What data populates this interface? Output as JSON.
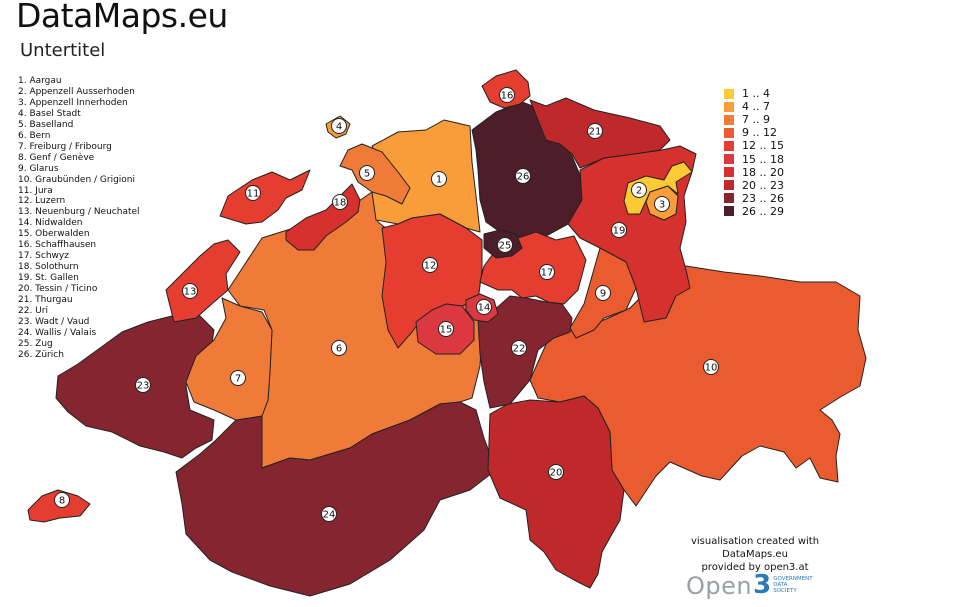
{
  "header": {
    "title": "DataMaps.eu",
    "subtitle": "Untertitel"
  },
  "cantons": [
    {
      "num": "1",
      "label": "1. Aargau",
      "class": 1
    },
    {
      "num": "2",
      "label": "2. Appenzell Ausserhoden",
      "class": 0
    },
    {
      "num": "3",
      "label": "3. Appenzell Innerhoden",
      "class": 1
    },
    {
      "num": "4",
      "label": "4. Basel Stadt",
      "class": 1
    },
    {
      "num": "5",
      "label": "5. Baselland",
      "class": 2
    },
    {
      "num": "6",
      "label": "6. Bern",
      "class": 2
    },
    {
      "num": "7",
      "label": "7. Freiburg / Fribourg",
      "class": 2
    },
    {
      "num": "8",
      "label": "8. Genf / Genève",
      "class": 4
    },
    {
      "num": "9",
      "label": "9. Glarus",
      "class": 3
    },
    {
      "num": "10",
      "label": "10. Graubünden / Grigioni",
      "class": 3
    },
    {
      "num": "11",
      "label": "11. Jura",
      "class": 4
    },
    {
      "num": "12",
      "label": "12. Luzern",
      "class": 4
    },
    {
      "num": "13",
      "label": "13. Neuenburg / Neuchatel",
      "class": 4
    },
    {
      "num": "14",
      "label": "14. Nidwalden",
      "class": 5
    },
    {
      "num": "15",
      "label": "15. Oberwalden",
      "class": 5
    },
    {
      "num": "16",
      "label": "16. Schaffhausen",
      "class": 4
    },
    {
      "num": "17",
      "label": "17. Schwyz",
      "class": 4
    },
    {
      "num": "18",
      "label": "18. Solothurn",
      "class": 6
    },
    {
      "num": "19",
      "label": "19. St. Gallen",
      "class": 6
    },
    {
      "num": "20",
      "label": "20. Tessin / Ticino",
      "class": 7
    },
    {
      "num": "21",
      "label": "21. Thurgau",
      "class": 7
    },
    {
      "num": "22",
      "label": "22. Uri",
      "class": 8
    },
    {
      "num": "23",
      "label": "23. Wadt / Vaud",
      "class": 8
    },
    {
      "num": "24",
      "label": "24. Wallis / Valais",
      "class": 8
    },
    {
      "num": "25",
      "label": "25. Zug",
      "class": 9
    },
    {
      "num": "26",
      "label": "26. Zürich",
      "class": 9
    }
  ],
  "legend": [
    {
      "label": "1 .. 4",
      "color": "#fdc935"
    },
    {
      "label": "4 .. 7",
      "color": "#f89d3a"
    },
    {
      "label": "7 .. 9",
      "color": "#f07a38"
    },
    {
      "label": "9 .. 12",
      "color": "#ea5c30"
    },
    {
      "label": "12 .. 15",
      "color": "#e53d30"
    },
    {
      "label": "15 .. 18",
      "color": "#dc3841"
    },
    {
      "label": "18 .. 20",
      "color": "#d6312e"
    },
    {
      "label": "20 .. 23",
      "color": "#c0292c"
    },
    {
      "label": "23 .. 26",
      "color": "#852530"
    },
    {
      "label": "26 .. 29",
      "color": "#4d1d29"
    }
  ],
  "credit": {
    "line1": "visualisation created with",
    "line2": "DataMaps.eu",
    "line3": "provided by open3.at"
  },
  "logo": {
    "word": "Open",
    "digit": "3",
    "tag1": "GOVERNMENT",
    "tag2": "DATA",
    "tag3": "SOCIETY"
  }
}
